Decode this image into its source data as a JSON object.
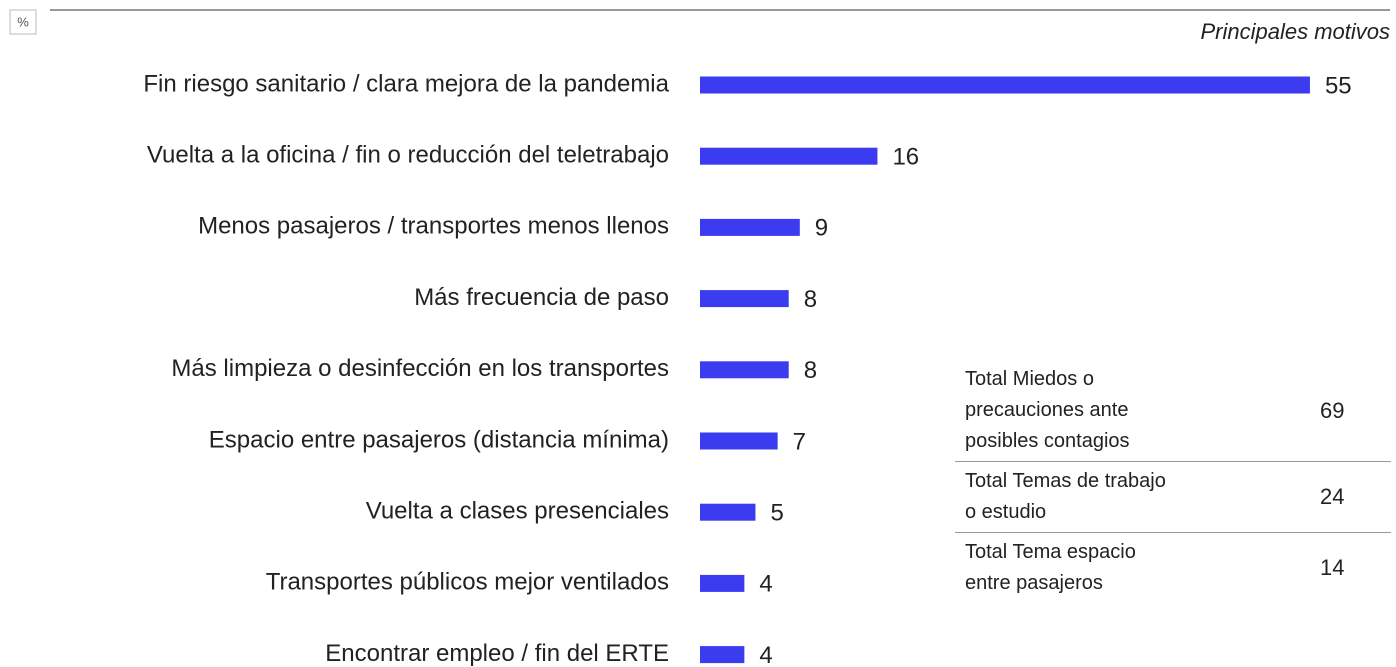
{
  "chart_data": {
    "type": "bar",
    "orientation": "horizontal",
    "axis_label": "%",
    "title": "Principales motivos",
    "categories": [
      "Fin riesgo sanitario / clara mejora de la pandemia",
      "Vuelta a la oficina / fin o reducción del teletrabajo",
      "Menos pasajeros / transportes menos llenos",
      "Más frecuencia de paso",
      "Más limpieza o desinfección en los transportes",
      "Espacio entre pasajeros (distancia mínima)",
      "Vuelta a clases presenciales",
      "Transportes públicos mejor ventilados",
      "Encontrar empleo / fin del ERTE"
    ],
    "values": [
      55,
      16,
      9,
      8,
      8,
      7,
      5,
      4,
      4
    ],
    "color": "#3b3bf0"
  },
  "summary_table": {
    "rows": [
      {
        "label": [
          "Total Miedos o",
          "precauciones ante",
          "posibles contagios"
        ],
        "value": 69
      },
      {
        "label": [
          "Total Temas de trabajo",
          "o estudio"
        ],
        "value": 24
      },
      {
        "label": [
          "Total Tema espacio",
          "entre pasajeros"
        ],
        "value": 14
      }
    ]
  }
}
